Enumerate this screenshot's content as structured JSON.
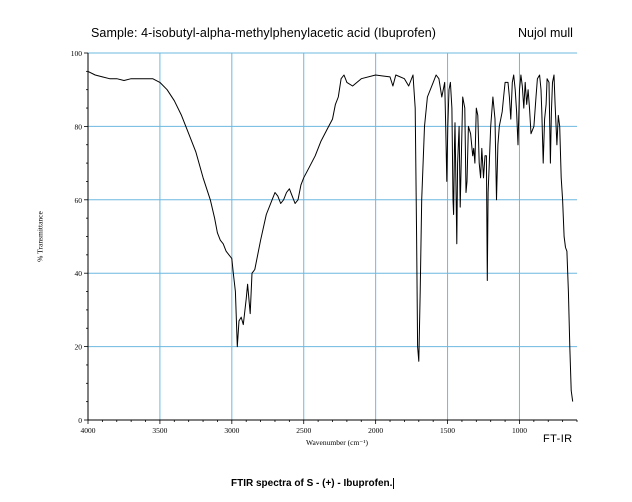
{
  "header": {
    "sample_title": "Sample: 4-isobutyl-alpha-methylphenylacetic acid (Ibuprofen)",
    "mull": "Nujol mull",
    "footer_tag": "FT-IR"
  },
  "caption": "FTIR spectra of S - (+) - Ibuprofen.",
  "chart_data": {
    "type": "line",
    "title": "Sample: 4-isobutyl-alpha-methylphenylacetic acid (Ibuprofen)",
    "xlabel": "Wavenumber (cm⁻¹)",
    "ylabel": "% Transmittance",
    "xlim": [
      4000,
      600
    ],
    "ylim": [
      0,
      100
    ],
    "x_reversed": true,
    "grid": true,
    "line_color": "#000000",
    "grid_color": "#6db8e0",
    "xticks": [
      4000,
      3500,
      3000,
      2500,
      2000,
      1500,
      1000
    ],
    "xtick_labels": [
      "4000",
      "3500",
      "3000",
      "2500",
      "2000",
      "1500",
      "1000"
    ],
    "yticks": [
      0,
      20,
      40,
      60,
      80,
      100
    ],
    "ytick_labels": [
      "0",
      "20",
      "40",
      "60",
      "80",
      "100"
    ],
    "series": [
      {
        "points": [
          [
            4000,
            95
          ],
          [
            3950,
            94
          ],
          [
            3900,
            93.5
          ],
          [
            3850,
            93
          ],
          [
            3800,
            93
          ],
          [
            3750,
            92.5
          ],
          [
            3700,
            93
          ],
          [
            3650,
            93
          ],
          [
            3600,
            93
          ],
          [
            3550,
            93
          ],
          [
            3500,
            92
          ],
          [
            3450,
            90
          ],
          [
            3400,
            87
          ],
          [
            3350,
            83
          ],
          [
            3300,
            78
          ],
          [
            3250,
            73
          ],
          [
            3200,
            66
          ],
          [
            3150,
            60
          ],
          [
            3120,
            55
          ],
          [
            3100,
            51
          ],
          [
            3080,
            49
          ],
          [
            3060,
            48
          ],
          [
            3040,
            46
          ],
          [
            3020,
            45
          ],
          [
            3000,
            44
          ],
          [
            2990,
            40
          ],
          [
            2975,
            35
          ],
          [
            2962,
            20
          ],
          [
            2950,
            27
          ],
          [
            2935,
            28
          ],
          [
            2920,
            26
          ],
          [
            2900,
            33
          ],
          [
            2890,
            37
          ],
          [
            2872,
            29
          ],
          [
            2860,
            40
          ],
          [
            2840,
            41
          ],
          [
            2800,
            49
          ],
          [
            2760,
            56
          ],
          [
            2720,
            60
          ],
          [
            2700,
            62
          ],
          [
            2680,
            61
          ],
          [
            2660,
            59
          ],
          [
            2640,
            60
          ],
          [
            2620,
            62
          ],
          [
            2600,
            63
          ],
          [
            2580,
            61
          ],
          [
            2560,
            59
          ],
          [
            2540,
            60
          ],
          [
            2520,
            64
          ],
          [
            2500,
            66
          ],
          [
            2460,
            69
          ],
          [
            2420,
            72
          ],
          [
            2380,
            76
          ],
          [
            2340,
            79
          ],
          [
            2300,
            82
          ],
          [
            2280,
            86
          ],
          [
            2260,
            88
          ],
          [
            2240,
            93
          ],
          [
            2220,
            94
          ],
          [
            2200,
            92
          ],
          [
            2160,
            91
          ],
          [
            2100,
            93
          ],
          [
            2000,
            94
          ],
          [
            1900,
            93.5
          ],
          [
            1880,
            91
          ],
          [
            1860,
            94
          ],
          [
            1800,
            93
          ],
          [
            1770,
            91
          ],
          [
            1740,
            94
          ],
          [
            1725,
            85
          ],
          [
            1715,
            50
          ],
          [
            1708,
            20
          ],
          [
            1700,
            16
          ],
          [
            1690,
            35
          ],
          [
            1680,
            60
          ],
          [
            1660,
            80
          ],
          [
            1640,
            88
          ],
          [
            1600,
            92
          ],
          [
            1580,
            94
          ],
          [
            1560,
            93
          ],
          [
            1540,
            88
          ],
          [
            1520,
            92
          ],
          [
            1512,
            79
          ],
          [
            1505,
            65
          ],
          [
            1498,
            80
          ],
          [
            1490,
            90
          ],
          [
            1480,
            92
          ],
          [
            1470,
            85
          ],
          [
            1462,
            60
          ],
          [
            1458,
            56
          ],
          [
            1452,
            75
          ],
          [
            1448,
            81
          ],
          [
            1442,
            65
          ],
          [
            1436,
            48
          ],
          [
            1430,
            70
          ],
          [
            1420,
            80
          ],
          [
            1412,
            58
          ],
          [
            1405,
            70
          ],
          [
            1395,
            88
          ],
          [
            1380,
            85
          ],
          [
            1372,
            62
          ],
          [
            1365,
            65
          ],
          [
            1355,
            80
          ],
          [
            1340,
            78
          ],
          [
            1325,
            72
          ],
          [
            1318,
            74
          ],
          [
            1310,
            70
          ],
          [
            1300,
            85
          ],
          [
            1290,
            83
          ],
          [
            1280,
            70
          ],
          [
            1270,
            66
          ],
          [
            1262,
            74
          ],
          [
            1250,
            66
          ],
          [
            1240,
            72
          ],
          [
            1230,
            72
          ],
          [
            1224,
            38
          ],
          [
            1218,
            62
          ],
          [
            1210,
            70
          ],
          [
            1200,
            80
          ],
          [
            1185,
            88
          ],
          [
            1170,
            82
          ],
          [
            1160,
            60
          ],
          [
            1150,
            75
          ],
          [
            1140,
            80
          ],
          [
            1120,
            84
          ],
          [
            1110,
            88
          ],
          [
            1100,
            92
          ],
          [
            1080,
            92
          ],
          [
            1070,
            88
          ],
          [
            1060,
            82
          ],
          [
            1050,
            92
          ],
          [
            1040,
            94
          ],
          [
            1030,
            90
          ],
          [
            1020,
            84
          ],
          [
            1010,
            75
          ],
          [
            1000,
            90
          ],
          [
            990,
            94
          ],
          [
            980,
            91
          ],
          [
            970,
            85
          ],
          [
            960,
            92
          ],
          [
            950,
            86
          ],
          [
            940,
            90
          ],
          [
            930,
            85
          ],
          [
            920,
            78
          ],
          [
            900,
            80
          ],
          [
            885,
            88
          ],
          [
            875,
            93
          ],
          [
            860,
            94
          ],
          [
            850,
            90
          ],
          [
            845,
            84
          ],
          [
            835,
            70
          ],
          [
            825,
            82
          ],
          [
            815,
            86
          ],
          [
            808,
            93
          ],
          [
            795,
            92
          ],
          [
            785,
            70
          ],
          [
            778,
            84
          ],
          [
            770,
            92
          ],
          [
            760,
            94
          ],
          [
            752,
            86
          ],
          [
            740,
            75
          ],
          [
            730,
            83
          ],
          [
            720,
            80
          ],
          [
            710,
            66
          ],
          [
            700,
            60
          ],
          [
            690,
            50
          ],
          [
            680,
            47
          ],
          [
            670,
            46
          ],
          [
            660,
            35
          ],
          [
            650,
            20
          ],
          [
            640,
            8
          ],
          [
            630,
            5
          ]
        ]
      }
    ]
  }
}
